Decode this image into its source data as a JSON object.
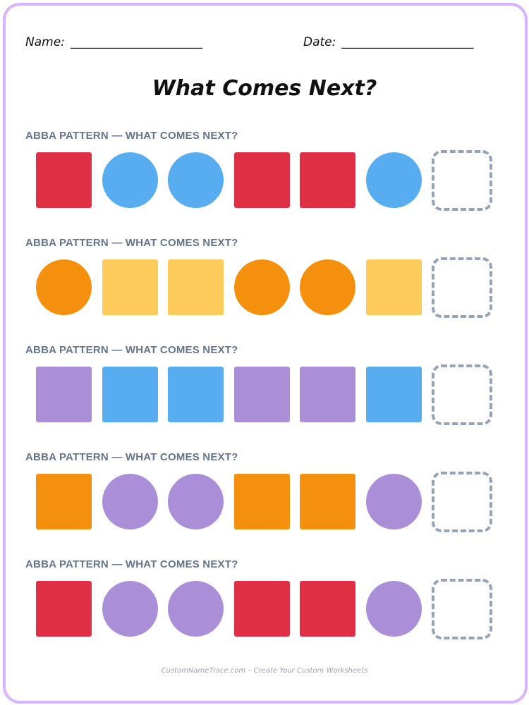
{
  "header": {
    "name_label": "Name:",
    "name_line": "______________________",
    "date_label": "Date:",
    "date_line": "______________________",
    "title": "What Comes Next?"
  },
  "colors": {
    "red": "#df2f44",
    "blue": "#57adf0",
    "orange": "#f5900e",
    "yellow": "#fdcb5b",
    "purple": "#aa8fd8",
    "blank": "#94a3b8",
    "frame": "#d8b4fe"
  },
  "sections": [
    {
      "title": "ABBA PATTERN — WHAT COMES NEXT?",
      "items": [
        {
          "shape": "square",
          "color": "red",
          "icon": "red-square-icon"
        },
        {
          "shape": "circle",
          "color": "blue",
          "icon": "blue-circle-icon"
        },
        {
          "shape": "circle",
          "color": "blue",
          "icon": "blue-circle-icon"
        },
        {
          "shape": "square",
          "color": "red",
          "icon": "red-square-icon"
        },
        {
          "shape": "square",
          "color": "red",
          "icon": "red-square-icon"
        },
        {
          "shape": "circle",
          "color": "blue",
          "icon": "blue-circle-icon"
        },
        {
          "shape": "blank",
          "color": "blank",
          "icon": "answer-box"
        }
      ]
    },
    {
      "title": "ABBA PATTERN — WHAT COMES NEXT?",
      "items": [
        {
          "shape": "circle",
          "color": "orange",
          "icon": "orange-circle-icon"
        },
        {
          "shape": "square",
          "color": "yellow",
          "icon": "yellow-square-icon"
        },
        {
          "shape": "square",
          "color": "yellow",
          "icon": "yellow-square-icon"
        },
        {
          "shape": "circle",
          "color": "orange",
          "icon": "orange-circle-icon"
        },
        {
          "shape": "circle",
          "color": "orange",
          "icon": "orange-circle-icon"
        },
        {
          "shape": "square",
          "color": "yellow",
          "icon": "yellow-square-icon"
        },
        {
          "shape": "blank",
          "color": "blank",
          "icon": "answer-box"
        }
      ]
    },
    {
      "title": "ABBA PATTERN — WHAT COMES NEXT?",
      "items": [
        {
          "shape": "square",
          "color": "purple",
          "icon": "purple-square-icon"
        },
        {
          "shape": "square",
          "color": "blue",
          "icon": "blue-square-icon"
        },
        {
          "shape": "square",
          "color": "blue",
          "icon": "blue-square-icon"
        },
        {
          "shape": "square",
          "color": "purple",
          "icon": "purple-square-icon"
        },
        {
          "shape": "square",
          "color": "purple",
          "icon": "purple-square-icon"
        },
        {
          "shape": "square",
          "color": "blue",
          "icon": "blue-square-icon"
        },
        {
          "shape": "blank",
          "color": "blank",
          "icon": "answer-box"
        }
      ]
    },
    {
      "title": "ABBA PATTERN — WHAT COMES NEXT?",
      "items": [
        {
          "shape": "square",
          "color": "orange",
          "icon": "orange-square-icon"
        },
        {
          "shape": "circle",
          "color": "purple",
          "icon": "purple-circle-icon"
        },
        {
          "shape": "circle",
          "color": "purple",
          "icon": "purple-circle-icon"
        },
        {
          "shape": "square",
          "color": "orange",
          "icon": "orange-square-icon"
        },
        {
          "shape": "square",
          "color": "orange",
          "icon": "orange-square-icon"
        },
        {
          "shape": "circle",
          "color": "purple",
          "icon": "purple-circle-icon"
        },
        {
          "shape": "blank",
          "color": "blank",
          "icon": "answer-box"
        }
      ]
    },
    {
      "title": "ABBA PATTERN — WHAT COMES NEXT?",
      "items": [
        {
          "shape": "square",
          "color": "red",
          "icon": "red-square-icon"
        },
        {
          "shape": "circle",
          "color": "purple",
          "icon": "purple-circle-icon"
        },
        {
          "shape": "circle",
          "color": "purple",
          "icon": "purple-circle-icon"
        },
        {
          "shape": "square",
          "color": "red",
          "icon": "red-square-icon"
        },
        {
          "shape": "square",
          "color": "red",
          "icon": "red-square-icon"
        },
        {
          "shape": "circle",
          "color": "purple",
          "icon": "purple-circle-icon"
        },
        {
          "shape": "blank",
          "color": "blank",
          "icon": "answer-box"
        }
      ]
    }
  ],
  "footer": "CustomNameTrace.com – Create Your Custom Worksheets"
}
